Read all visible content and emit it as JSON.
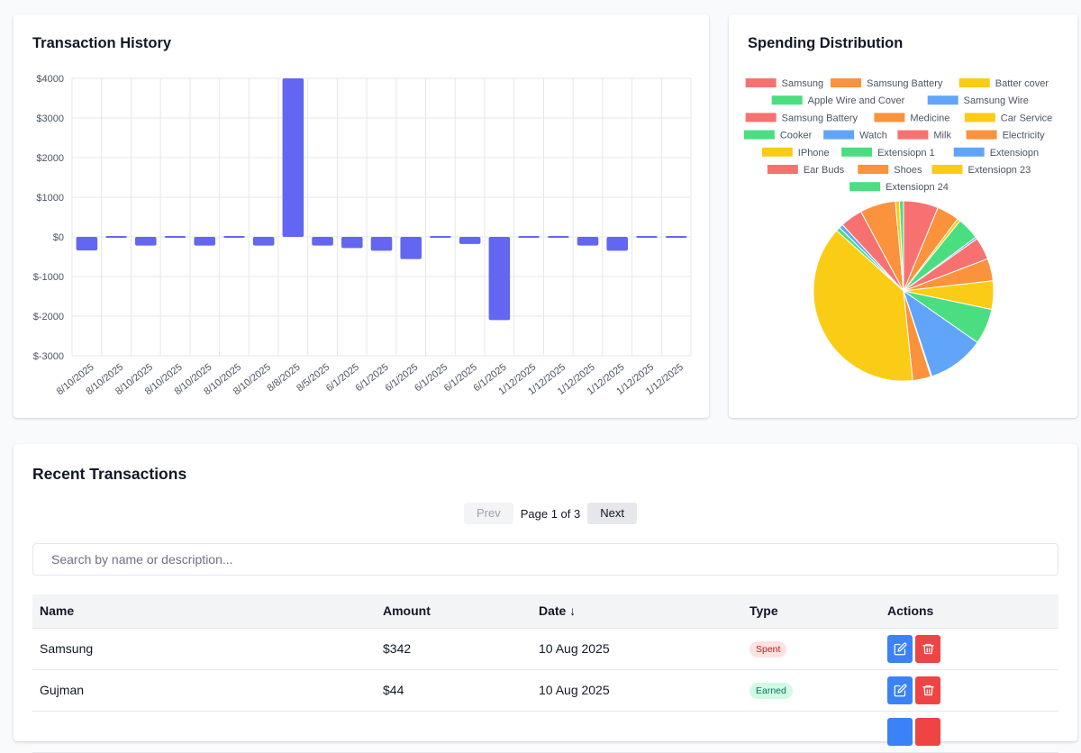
{
  "history": {
    "title": "Transaction History",
    "chart_data": {
      "type": "bar",
      "title": "Transaction History",
      "categories": [
        "8/10/2025",
        "8/10/2025",
        "8/10/2025",
        "8/10/2025",
        "8/10/2025",
        "8/10/2025",
        "8/10/2025",
        "8/8/2025",
        "8/5/2025",
        "6/1/2025",
        "6/1/2025",
        "6/1/2025",
        "6/1/2025",
        "6/1/2025",
        "6/1/2025",
        "1/12/2025",
        "1/12/2025",
        "1/12/2025",
        "1/12/2025",
        "1/12/2025",
        "1/12/2025"
      ],
      "values": [
        -342,
        44,
        -220,
        -30,
        -220,
        -20,
        -220,
        4000,
        -220,
        -280,
        -350,
        -560,
        -10,
        -180,
        -2100,
        -40,
        -40,
        -220,
        -350,
        -40,
        -40
      ],
      "y_ticks": [
        "$4000",
        "$3000",
        "$2000",
        "$1000",
        "$0",
        "$-1000",
        "$-2000",
        "$-3000"
      ],
      "ylim": [
        -3000,
        4000
      ],
      "grid": true,
      "color": "#6366f1"
    }
  },
  "distribution": {
    "title": "Spending Distribution",
    "chart_data": {
      "type": "pie",
      "title": "Spending Distribution",
      "legend_position": "top",
      "labels": [
        "Samsung",
        "Samsung Battery",
        "Batter cover",
        "Apple Wire and Cover",
        "Samsung  Wire",
        "Samsung Battery",
        "Medicine",
        "Car Service",
        "Cooker",
        "Watch",
        "Milk",
        "Electricity",
        "IPhone",
        "Extensiopn 1",
        "Extensiopn",
        "Ear Buds",
        "Shoes",
        "Extensiopn 23",
        "Extensiopn 24"
      ],
      "colors": [
        "#f87171",
        "#fb923c",
        "#facc15",
        "#4ade80",
        "#60a5fa",
        "#f87171",
        "#fb923c",
        "#facc15",
        "#4ade80",
        "#60a5fa",
        "#f87171",
        "#fb923c",
        "#facc15",
        "#4ade80",
        "#60a5fa",
        "#f87171",
        "#fb923c",
        "#facc15",
        "#4ade80"
      ],
      "values": [
        342,
        220,
        30,
        220,
        20,
        220,
        220,
        280,
        350,
        560,
        10,
        180,
        2100,
        40,
        40,
        220,
        350,
        40,
        40
      ]
    }
  },
  "recent": {
    "title": "Recent Transactions",
    "prev_label": "Prev",
    "page_info": "Page 1 of 3",
    "next_label": "Next",
    "search_placeholder": "Search by name or description...",
    "columns": [
      "Name",
      "Amount",
      "Date ↓",
      "Type",
      "Actions"
    ],
    "rows": [
      {
        "name": "Samsung",
        "amount": "$342",
        "date": "10 Aug 2025",
        "type": "Spent"
      },
      {
        "name": "Gujman",
        "amount": "$44",
        "date": "10 Aug 2025",
        "type": "Earned"
      },
      {
        "name": "",
        "amount": "",
        "date": "",
        "type": ""
      }
    ]
  }
}
